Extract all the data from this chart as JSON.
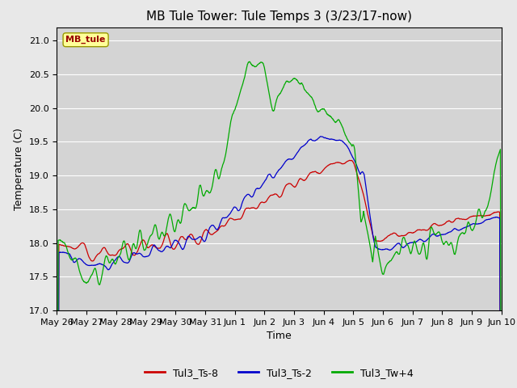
{
  "title": "MB Tule Tower: Tule Temps 3 (3/23/17-now)",
  "xlabel": "Time",
  "ylabel": "Temperature (C)",
  "ylim": [
    17.0,
    21.2
  ],
  "xlim": [
    0,
    15
  ],
  "x_tick_labels": [
    "May 26",
    "May 27",
    "May 28",
    "May 29",
    "May 30",
    "May 31",
    "Jun 1",
    "Jun 2",
    "Jun 3",
    "Jun 4",
    "Jun 5",
    "Jun 6",
    "Jun 7",
    "Jun 8",
    "Jun 9",
    "Jun 10"
  ],
  "legend_labels": [
    "Tul3_Ts-8",
    "Tul3_Ts-2",
    "Tul3_Tw+4"
  ],
  "legend_colors": [
    "#cc0000",
    "#0000cc",
    "#00aa00"
  ],
  "watermark_text": "MB_tule",
  "bg_color": "#e8e8e8",
  "plot_bg_color": "#d4d4d4",
  "grid_color": "#ffffff",
  "title_fontsize": 11,
  "label_fontsize": 9,
  "tick_fontsize": 8
}
